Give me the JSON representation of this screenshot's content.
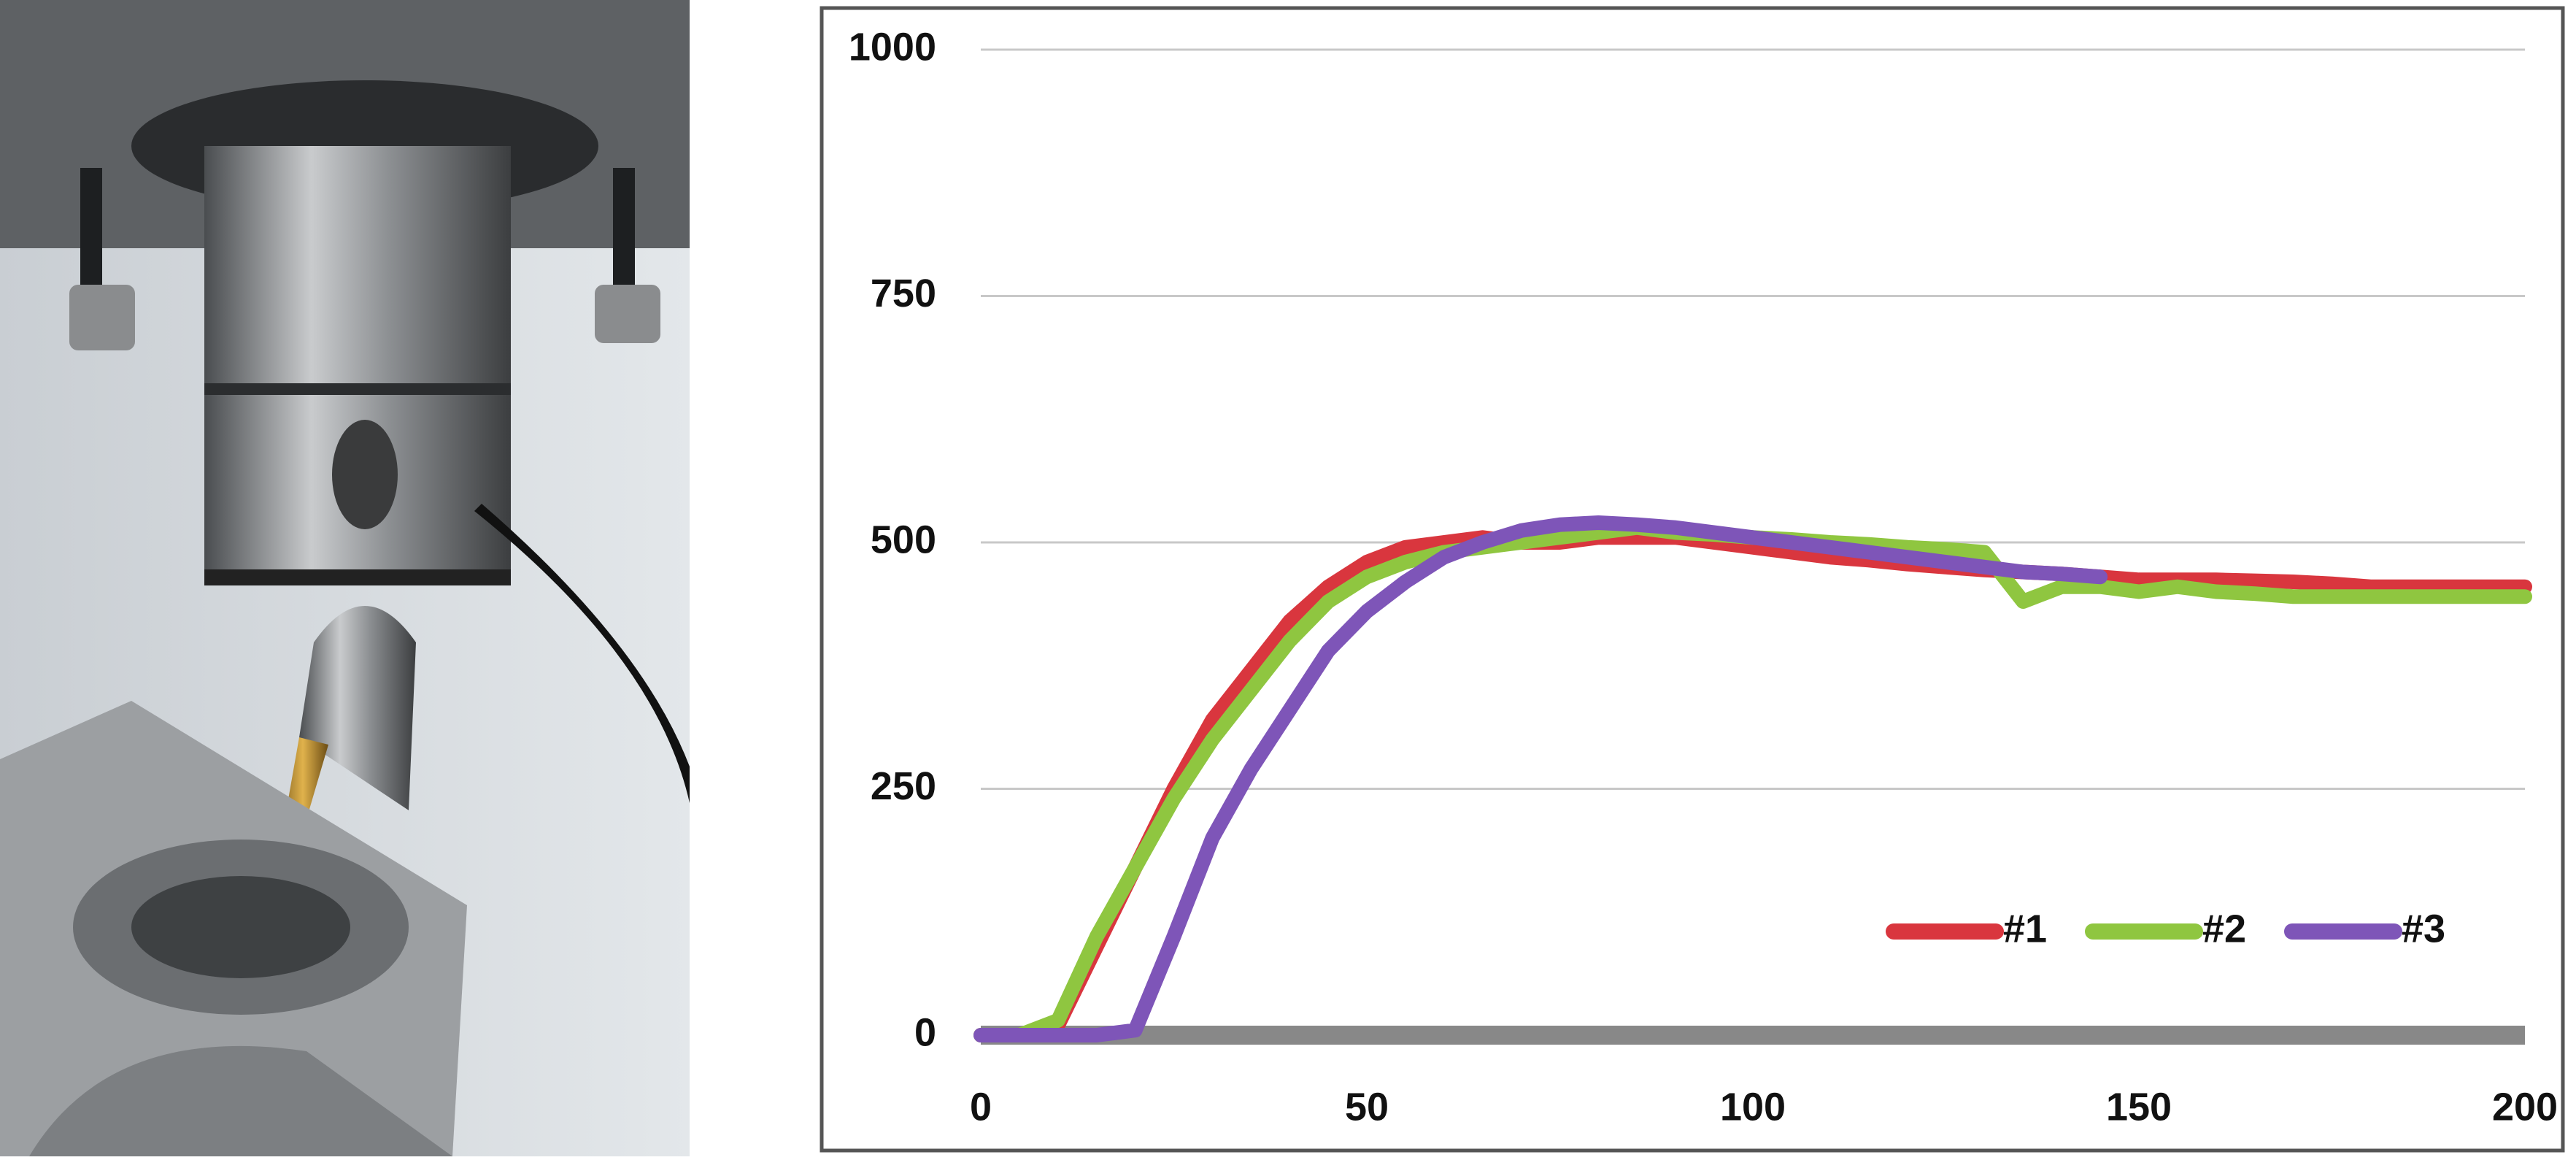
{
  "chart_data": {
    "type": "line",
    "x": [
      0,
      5,
      10,
      15,
      20,
      25,
      30,
      35,
      40,
      45,
      50,
      55,
      60,
      65,
      70,
      75,
      80,
      85,
      90,
      95,
      100,
      105,
      110,
      115,
      120,
      125,
      130,
      135,
      140,
      145,
      150,
      155,
      160,
      165,
      170,
      175,
      180,
      185,
      190,
      195,
      200
    ],
    "xlim": [
      0,
      200
    ],
    "xticks": [
      0,
      50,
      100,
      150,
      200
    ],
    "ylim": [
      0,
      1000
    ],
    "yticks": [
      0,
      250,
      500,
      750,
      1000
    ],
    "grid": true,
    "legend": "lower right",
    "series": [
      {
        "name": "#1",
        "color": "#d9363e",
        "values": [
          0,
          0,
          10,
          90,
          170,
          250,
          320,
          370,
          420,
          455,
          480,
          495,
          500,
          505,
          500,
          500,
          505,
          505,
          505,
          500,
          495,
          490,
          485,
          482,
          478,
          475,
          472,
          470,
          468,
          465,
          462,
          462,
          462,
          461,
          460,
          458,
          455,
          455,
          455,
          455,
          455
        ]
      },
      {
        "name": "#2",
        "color": "#8fc640",
        "values": [
          0,
          0,
          15,
          100,
          170,
          240,
          300,
          350,
          400,
          440,
          465,
          480,
          490,
          495,
          500,
          505,
          510,
          515,
          510,
          508,
          505,
          503,
          500,
          498,
          495,
          493,
          490,
          440,
          455,
          455,
          450,
          455,
          450,
          448,
          445,
          445,
          445,
          445,
          445,
          445,
          445
        ]
      },
      {
        "name": "#3",
        "color": "#7e55b8",
        "values": [
          0,
          0,
          0,
          0,
          5,
          100,
          200,
          270,
          330,
          390,
          430,
          460,
          485,
          500,
          512,
          518,
          520,
          518,
          515,
          510,
          505,
          500,
          495,
          490,
          485,
          480,
          475,
          470,
          468,
          465,
          null,
          null,
          null,
          null,
          null,
          null,
          null,
          null,
          null,
          null,
          null
        ]
      }
    ]
  }
}
